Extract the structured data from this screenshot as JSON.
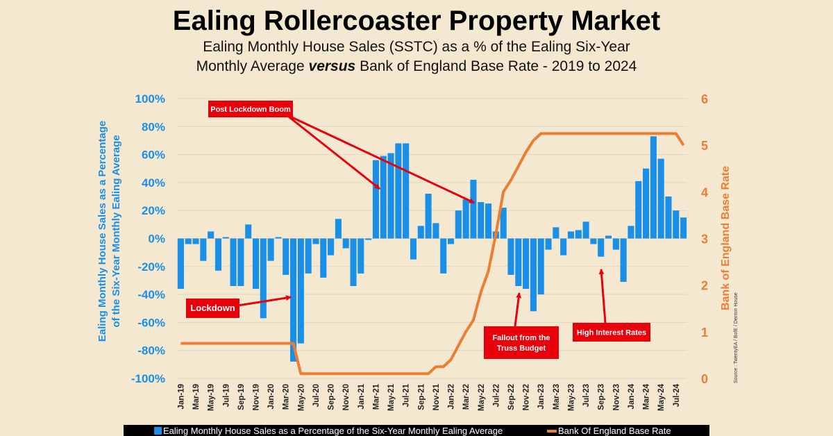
{
  "title": "Ealing Rollercoaster Property Market",
  "subtitle_line1": "Ealing Monthly House Sales (SSTC) as a % of the Ealing Six-Year",
  "subtitle_line2_pre": "Monthly Average ",
  "subtitle_line2_em": "versus",
  "subtitle_line2_post": " Bank of England Base Rate - 2019 to 2024",
  "source": "Source : TwentyEA / BofE / Denton House",
  "colors": {
    "bars": "#1a8fe8",
    "line": "#ed7d31",
    "annotation": "#e8000b",
    "background": "#f4e8d1"
  },
  "chart_data": {
    "type": "bar+line",
    "categories": [
      "Jan-19",
      "Feb-19",
      "Mar-19",
      "Apr-19",
      "May-19",
      "Jun-19",
      "Jul-19",
      "Aug-19",
      "Sep-19",
      "Oct-19",
      "Nov-19",
      "Dec-19",
      "Jan-20",
      "Feb-20",
      "Mar-20",
      "Apr-20",
      "May-20",
      "Jun-20",
      "Jul-20",
      "Aug-20",
      "Sep-20",
      "Oct-20",
      "Nov-20",
      "Dec-20",
      "Jan-21",
      "Feb-21",
      "Mar-21",
      "Apr-21",
      "May-21",
      "Jun-21",
      "Jul-21",
      "Aug-21",
      "Sep-21",
      "Oct-21",
      "Nov-21",
      "Dec-21",
      "Jan-22",
      "Feb-22",
      "Mar-22",
      "Apr-22",
      "May-22",
      "Jun-22",
      "Jul-22",
      "Aug-22",
      "Sep-22",
      "Oct-22",
      "Nov-22",
      "Dec-22",
      "Jan-23",
      "Feb-23",
      "Mar-23",
      "Apr-23",
      "May-23",
      "Jun-23",
      "Jul-23",
      "Aug-23",
      "Sep-23",
      "Oct-23",
      "Nov-23",
      "Dec-23",
      "Jan-24",
      "Feb-24",
      "Mar-24",
      "Apr-24",
      "May-24",
      "Jun-24",
      "Jul-24",
      "Aug-24"
    ],
    "series": [
      {
        "name": "Ealing Monthly House Sales as a Percentage of the Six-Year Monthly Ealing Average",
        "type": "bar",
        "axis": "left",
        "values": [
          -36,
          -4,
          -4,
          -16,
          5,
          -23,
          1,
          -34,
          -34,
          10,
          -36,
          -57,
          -16,
          1,
          -26,
          -88,
          -75,
          -25,
          -4,
          -28,
          -12,
          14,
          -7,
          -34,
          -25,
          -1,
          56,
          59,
          61,
          68,
          68,
          -15,
          9,
          32,
          11,
          -25,
          -4,
          20,
          28,
          42,
          26,
          25,
          5,
          22,
          -26,
          -34,
          -36,
          -52,
          -40,
          -8,
          8,
          -12,
          5,
          6,
          12,
          -4,
          -13,
          2,
          -8,
          -31,
          9,
          41,
          50,
          73,
          57,
          30,
          20,
          15
        ]
      },
      {
        "name": "Bank Of England Base Rate",
        "type": "line",
        "axis": "right",
        "values": [
          0.75,
          0.75,
          0.75,
          0.75,
          0.75,
          0.75,
          0.75,
          0.75,
          0.75,
          0.75,
          0.75,
          0.75,
          0.75,
          0.75,
          0.75,
          0.75,
          0.1,
          0.1,
          0.1,
          0.1,
          0.1,
          0.1,
          0.1,
          0.1,
          0.1,
          0.1,
          0.1,
          0.1,
          0.1,
          0.1,
          0.1,
          0.1,
          0.1,
          0.1,
          0.25,
          0.25,
          0.4,
          0.7,
          1.0,
          1.25,
          1.85,
          2.3,
          3.1,
          4.0,
          4.25,
          4.55,
          4.85,
          5.1,
          5.25,
          5.25,
          5.25,
          5.25,
          5.25,
          5.25,
          5.25,
          5.25,
          5.25,
          5.25,
          5.25,
          5.25,
          5.25,
          5.25,
          5.25,
          5.25,
          5.25,
          5.25,
          5.25,
          5.0
        ]
      }
    ],
    "y_left": {
      "label_line1": "Ealing Monthly House Sales as a Percentage",
      "label_line2": "of the Six-Year Monthly Ealing Average",
      "range": [
        -100,
        100
      ],
      "ticks": [
        "100%",
        "80%",
        "60%",
        "40%",
        "20%",
        "0%",
        "-20%",
        "-40%",
        "-60%",
        "-80%",
        "-100%"
      ]
    },
    "y_right": {
      "label": "Bank of England Base Rate",
      "range": [
        0,
        6
      ],
      "ticks": [
        "6",
        "5",
        "4",
        "3",
        "2",
        "1",
        "0"
      ]
    },
    "x_tick_labels": [
      "Jan-19",
      "Mar-19",
      "May-19",
      "Jul-19",
      "Sep-19",
      "Nov-19",
      "Jan-20",
      "Mar-20",
      "May-20",
      "Jul-20",
      "Sep-20",
      "Nov-20",
      "Jan-21",
      "Mar-21",
      "May-21",
      "Jul-21",
      "Sep-21",
      "Nov-21",
      "Jan-22",
      "Mar-22",
      "May-22",
      "Jul-22",
      "Sep-22",
      "Nov-22",
      "Jan-23",
      "Mar-23",
      "May-23",
      "Jul-23",
      "Sep-23",
      "Nov-23",
      "Jan-24",
      "Mar-24",
      "May-24",
      "Jul-24"
    ],
    "grid": true,
    "legend_position": "bottom",
    "annotations": [
      {
        "text": "Post Lockdown Boom",
        "points_to": [
          "Mar-21",
          "Apr-22"
        ]
      },
      {
        "text": "Lockdown",
        "points_to": [
          "Apr-20"
        ]
      },
      {
        "text_line1": "Fallout from the",
        "text_line2": "Truss Budget",
        "points_to": [
          "Oct-22"
        ]
      },
      {
        "text": "High Interest Rates",
        "points_to": [
          "Sep-23"
        ]
      }
    ]
  }
}
